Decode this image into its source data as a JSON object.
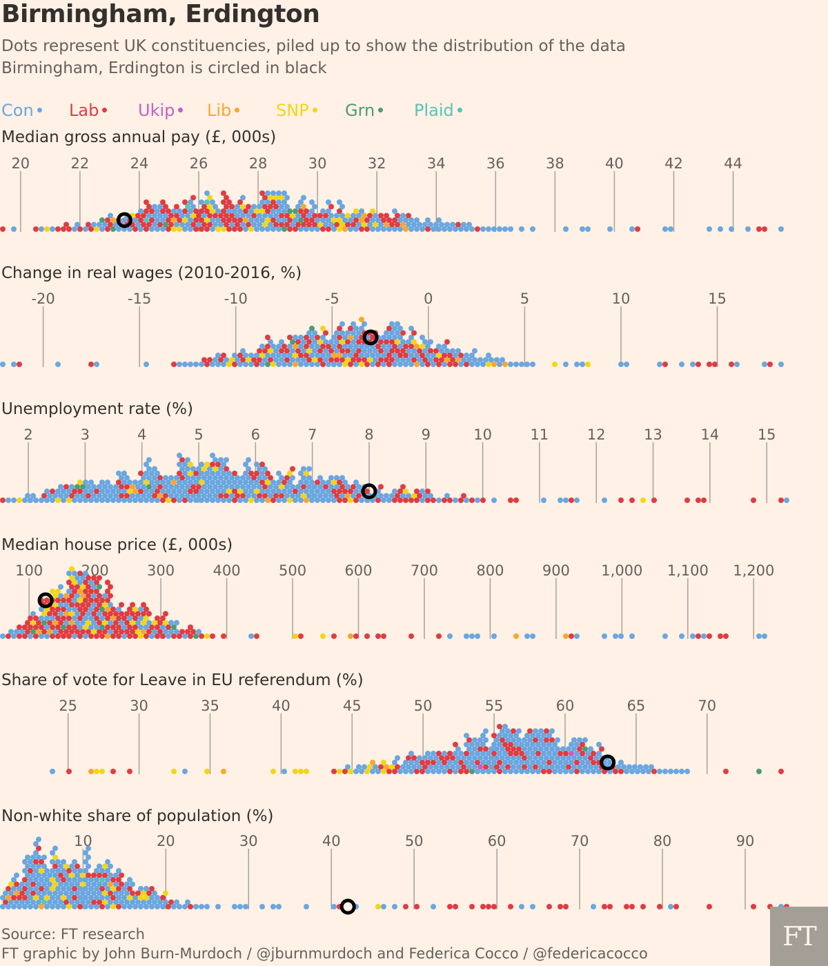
{
  "title": "Birmingham, Erdington",
  "subtitle_lines": [
    "Dots represent UK constituencies, piled up to show the distribution of the data",
    "Birmingham, Erdington is circled in black"
  ],
  "legend": [
    {
      "label": "Con",
      "color": "#6aa7e0"
    },
    {
      "label": "Lab",
      "color": "#e03c43"
    },
    {
      "label": "Ukip",
      "color": "#c65fc4"
    },
    {
      "label": "Lib",
      "color": "#f7a730"
    },
    {
      "label": "SNP",
      "color": "#f2d616"
    },
    {
      "label": "Grn",
      "color": "#4d9c76"
    },
    {
      "label": "Plaid",
      "color": "#5bc3b8"
    }
  ],
  "source": "Source: FT research",
  "credit": "FT graphic by John Burn-Murdoch / @jburnmurdoch and Federica Cocco / @federicacocco",
  "logo_text": "FT",
  "chart_data": [
    {
      "type": "scatter",
      "title": "Median gross annual pay (£, 000s)",
      "tick_values": [
        20,
        22,
        24,
        26,
        28,
        30,
        32,
        34,
        36,
        38,
        40,
        42,
        44
      ],
      "tick_labels": [
        "20",
        "22",
        "24",
        "26",
        "28",
        "30",
        "32",
        "34",
        "36",
        "38",
        "40",
        "42",
        "44"
      ],
      "xlim": [
        19.4,
        45.8
      ],
      "highlight_value": 23.5,
      "distribution": {
        "peak": 27.0,
        "spread_left": 3.2,
        "spread_right": 4.8,
        "max_stack": 8
      },
      "composition": {
        "low": {
          "Con": 0.45,
          "Lab": 0.42,
          "SNP": 0.08,
          "Lib": 0.03,
          "Grn": 0.01,
          "Plaid": 0.01
        },
        "high": {
          "Con": 0.85,
          "Lab": 0.11,
          "Lib": 0.04
        }
      }
    },
    {
      "type": "scatter",
      "title": "Change in real wages (2010-2016, %)",
      "tick_values": [
        -20,
        -15,
        -10,
        -5,
        0,
        5,
        10,
        15
      ],
      "tick_labels": [
        "-20",
        "-15",
        "-10",
        "-5",
        "0",
        "5",
        "10",
        "15"
      ],
      "xlim": [
        -22.1,
        18.6
      ],
      "highlight_value": -3.0,
      "distribution": {
        "peak": -4.0,
        "spread_left": 4.5,
        "spread_right": 4.5,
        "max_stack": 9
      },
      "composition": {
        "low": {
          "Con": 0.55,
          "Lab": 0.35,
          "SNP": 0.06,
          "Lib": 0.03,
          "Grn": 0.01
        },
        "high": {
          "Con": 0.6,
          "Lab": 0.3,
          "SNP": 0.06,
          "Lib": 0.04
        }
      }
    },
    {
      "type": "scatter",
      "title": "Unemployment rate (%)",
      "tick_values": [
        2,
        3,
        4,
        5,
        6,
        7,
        8,
        9,
        10,
        11,
        12,
        13,
        14,
        15
      ],
      "tick_labels": [
        "2",
        "3",
        "4",
        "5",
        "6",
        "7",
        "8",
        "9",
        "10",
        "11",
        "12",
        "13",
        "14",
        "15"
      ],
      "xlim": [
        1.55,
        15.35
      ],
      "highlight_value": 8.0,
      "distribution": {
        "peak": 4.8,
        "spread_left": 1.6,
        "spread_right": 2.6,
        "max_stack": 9
      },
      "composition": {
        "low": {
          "Con": 0.72,
          "Lab": 0.18,
          "SNP": 0.06,
          "Lib": 0.03,
          "Grn": 0.01
        },
        "high": {
          "Con": 0.2,
          "Lab": 0.75,
          "SNP": 0.04,
          "Lib": 0.01
        }
      }
    },
    {
      "type": "scatter",
      "title": "Median house price (£, 000s)",
      "tick_values": [
        100,
        200,
        300,
        400,
        500,
        600,
        700,
        800,
        900,
        1000,
        1100,
        1200
      ],
      "tick_labels": [
        "100",
        "200",
        "300",
        "400",
        "500",
        "600",
        "700",
        "800",
        "900",
        "1,000",
        "1,100",
        "1,200"
      ],
      "xlim": [
        60,
        1250
      ],
      "highlight_value": 125,
      "distribution": {
        "peak": 150,
        "spread_left": 40,
        "spread_right": 110,
        "max_stack": 13
      },
      "composition": {
        "low": {
          "Lab": 0.55,
          "Con": 0.28,
          "SNP": 0.12,
          "Lib": 0.03,
          "Grn": 0.02
        },
        "high": {
          "Con": 0.7,
          "Lab": 0.26,
          "Lib": 0.04
        }
      }
    },
    {
      "type": "scatter",
      "title": "Share of vote for Leave in EU referendum (%)",
      "tick_values": [
        25,
        30,
        35,
        40,
        45,
        50,
        55,
        60,
        65,
        70
      ],
      "tick_labels": [
        "25",
        "30",
        "35",
        "40",
        "45",
        "50",
        "55",
        "60",
        "65",
        "70"
      ],
      "xlim": [
        20.4,
        75.6
      ],
      "highlight_value": 63.0,
      "distribution": {
        "peak": 57.0,
        "spread_left": 6.5,
        "spread_right": 5.0,
        "max_stack": 10
      },
      "composition": {
        "low": {
          "SNP": 0.35,
          "Con": 0.35,
          "Lab": 0.22,
          "Lib": 0.06,
          "Grn": 0.02
        },
        "high": {
          "Con": 0.68,
          "Lab": 0.3,
          "Ukip": 0.01,
          "Grn": 0.01
        }
      }
    },
    {
      "type": "scatter",
      "title": "Non-white share of population (%)",
      "tick_values": [
        10,
        20,
        30,
        40,
        50,
        60,
        70,
        80,
        90
      ],
      "tick_labels": [
        "10",
        "20",
        "30",
        "40",
        "50",
        "60",
        "70",
        "80",
        "90"
      ],
      "xlim": [
        0.3,
        95.0
      ],
      "highlight_value": 42.0,
      "distribution": {
        "peak": 4.5,
        "spread_left": 2.5,
        "spread_right": 9.0,
        "max_stack": 14
      },
      "composition": {
        "low": {
          "Con": 0.62,
          "Lab": 0.22,
          "SNP": 0.12,
          "Lib": 0.03,
          "Plaid": 0.01
        },
        "high": {
          "Lab": 0.85,
          "Con": 0.15
        }
      }
    }
  ]
}
